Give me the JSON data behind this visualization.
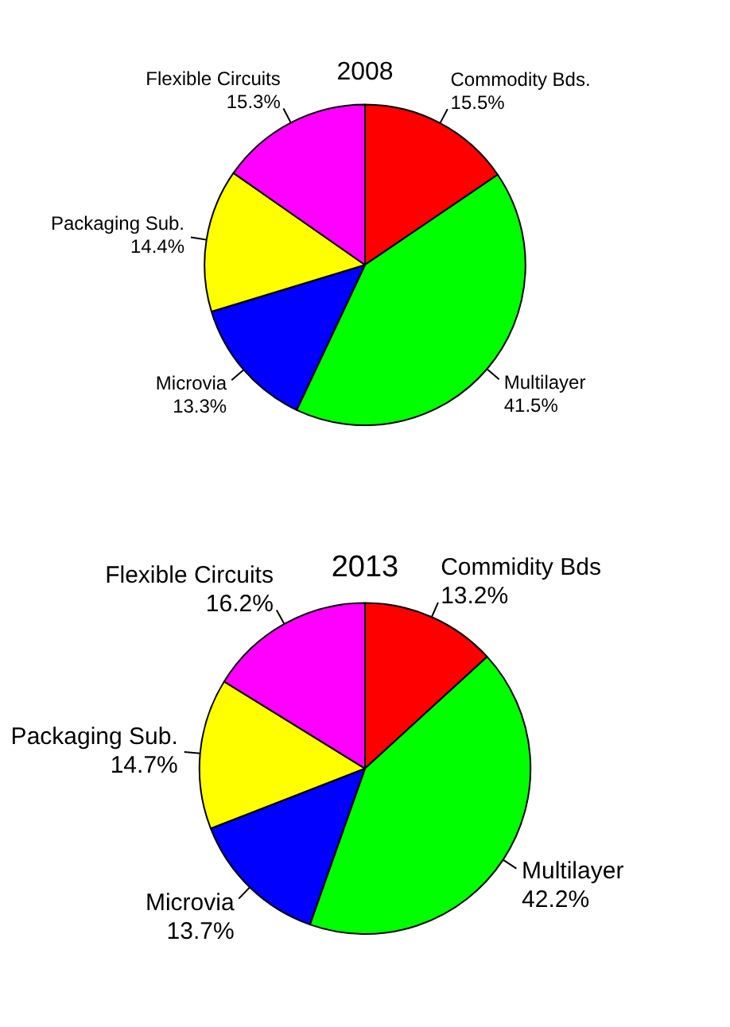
{
  "chart_data": [
    {
      "type": "pie",
      "title": "2008",
      "categories": [
        "Commodity Bds.",
        "Multilayer",
        "Microvia",
        "Packaging Sub.",
        "Flexible Circuits"
      ],
      "values": [
        15.5,
        41.5,
        13.3,
        14.4,
        15.3
      ],
      "value_labels": [
        "15.5%",
        "41.5%",
        "13.3%",
        "14.4%",
        "15.3%"
      ],
      "colors": [
        "#ff0000",
        "#00ff00",
        "#0000ff",
        "#ffff00",
        "#ff00ff"
      ],
      "legend": false
    },
    {
      "type": "pie",
      "title": "2013",
      "categories": [
        "Commidity Bds",
        "Multilayer",
        "Microvia",
        "Packaging Sub.",
        "Flexible Circuits"
      ],
      "values": [
        13.2,
        42.2,
        13.7,
        14.7,
        16.2
      ],
      "value_labels": [
        "13.2%",
        "42.2%",
        "13.7%",
        "14.7%",
        "16.2%"
      ],
      "colors": [
        "#ff0000",
        "#00ff00",
        "#0000ff",
        "#ffff00",
        "#ff00ff"
      ],
      "legend": false
    }
  ]
}
